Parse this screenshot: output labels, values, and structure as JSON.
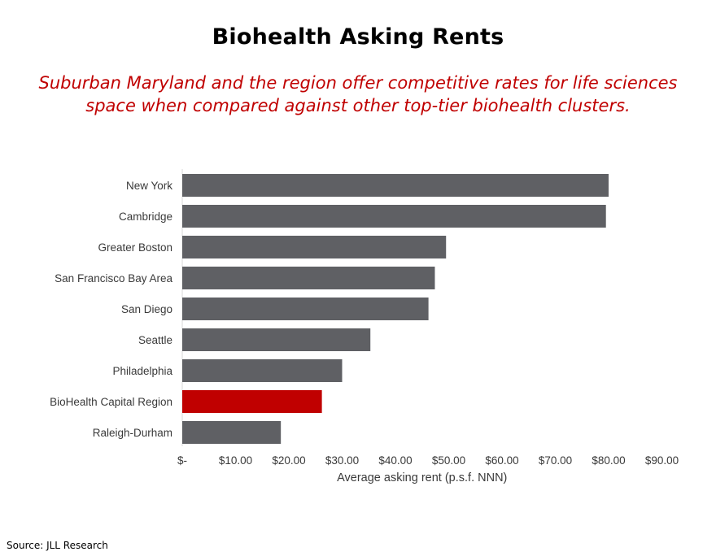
{
  "title": "Biohealth Asking Rents",
  "subtitle": "Suburban Maryland and the region offer competitive rates for life sciences space when compared against other top-tier biohealth clusters.",
  "source": "Source: JLL Research",
  "chart_data": {
    "type": "bar",
    "orientation": "horizontal",
    "categories": [
      "New York",
      "Cambridge",
      "Greater Boston",
      "San Francisco Bay Area",
      "San Diego",
      "Seattle",
      "Philadelphia",
      "BioHealth Capital Region",
      "Raleigh-Durham"
    ],
    "values": [
      80.0,
      79.5,
      49.5,
      47.4,
      46.2,
      35.3,
      30.0,
      26.2,
      18.5
    ],
    "highlight_category": "BioHealth Capital Region",
    "bar_color": "#5f6064",
    "highlight_color": "#c00000",
    "xlabel": "Average asking rent (p.s.f. NNN)",
    "ylabel": "",
    "xlim": [
      0,
      90
    ],
    "xticks": [
      0,
      10,
      20,
      30,
      40,
      50,
      60,
      70,
      80,
      90
    ],
    "xtick_labels": [
      "$-",
      "$10.00",
      "$20.00",
      "$30.00",
      "$40.00",
      "$50.00",
      "$60.00",
      "$70.00",
      "$80.00",
      "$90.00"
    ],
    "grid": false,
    "legend": "none"
  }
}
